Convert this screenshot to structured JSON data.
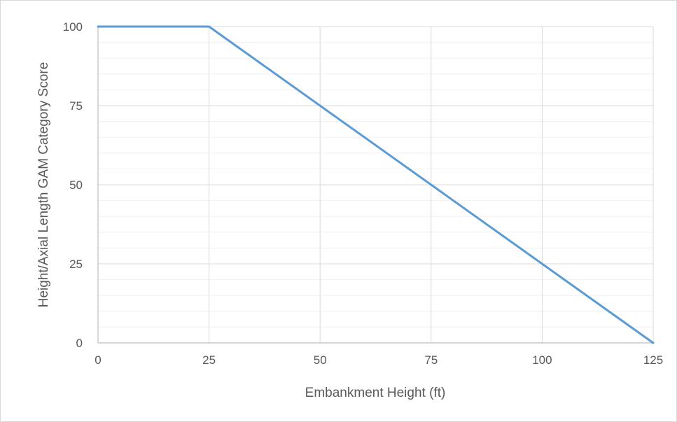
{
  "chart_data": {
    "type": "line",
    "title": "",
    "xlabel": "Embankment Height (ft)",
    "ylabel": "Height/Axial Length  GAM Category Score",
    "xlim": [
      0,
      125
    ],
    "ylim": [
      0,
      100
    ],
    "x_ticks": [
      0,
      25,
      50,
      75,
      100,
      125
    ],
    "y_ticks": [
      0,
      25,
      50,
      75,
      100
    ],
    "grid": true,
    "legend": "none",
    "series": [
      {
        "x": [
          0,
          25,
          125
        ],
        "y": [
          100,
          100,
          0
        ],
        "color": "#5b9bd5"
      }
    ]
  }
}
